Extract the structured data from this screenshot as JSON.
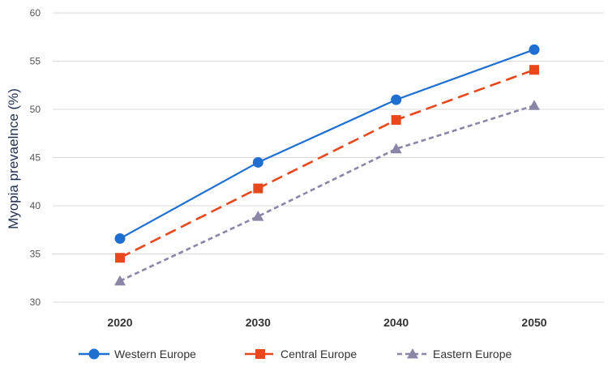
{
  "chart_data": {
    "type": "line",
    "title": "",
    "xlabel": "",
    "ylabel": "Myopia prevaelnce (%)",
    "categories": [
      "2020",
      "2030",
      "2040",
      "2050"
    ],
    "ylim": [
      30,
      60
    ],
    "yticks": [
      "30",
      "35",
      "40",
      "45",
      "50",
      "55",
      "60"
    ],
    "grid": "horizontal",
    "legend_position": "bottom",
    "series": [
      {
        "name": "Western Europe",
        "values": [
          36.6,
          44.5,
          51.0,
          56.2
        ],
        "color": "#1f6fd1",
        "marker": "circle",
        "dash": "solid"
      },
      {
        "name": "Central Europe",
        "values": [
          34.6,
          41.8,
          48.9,
          54.1
        ],
        "color": "#e8481c",
        "marker": "square",
        "dash": "dash"
      },
      {
        "name": "Eastern Europe",
        "values": [
          32.2,
          38.9,
          45.9,
          50.4
        ],
        "color": "#8a87a6",
        "marker": "triangle",
        "dash": "dot"
      }
    ]
  }
}
